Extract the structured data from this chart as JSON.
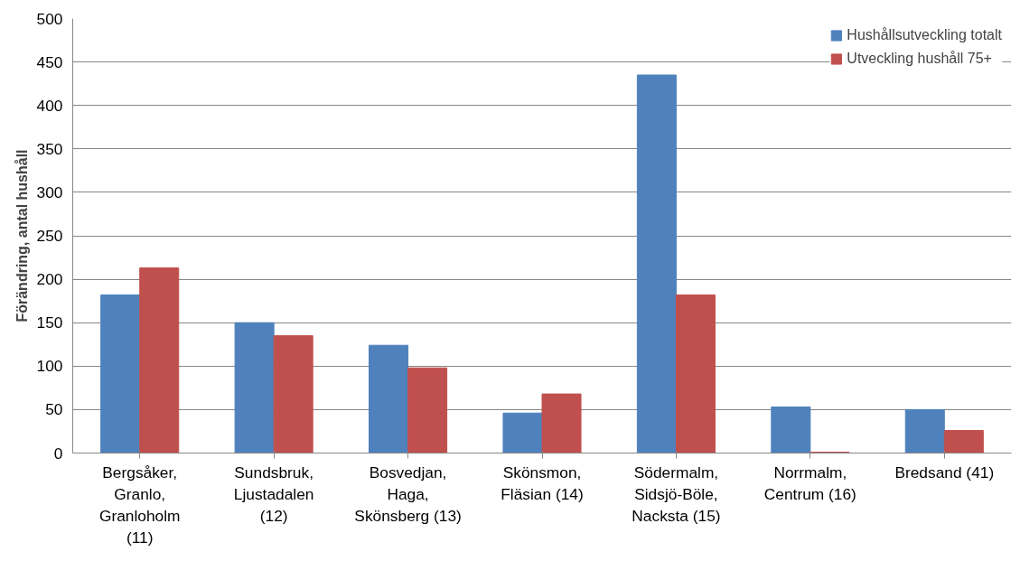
{
  "chart_data": {
    "type": "bar",
    "ylabel": "Förändring, antal hushåll",
    "categories": [
      "Bergsåker,\nGranlo,\nGranloholm\n(11)",
      "Sundsbruk,\nLjustadalen\n(12)",
      "Bosvedjan,\nHaga,\nSkönsberg (13)",
      "Skönsmon,\nFläsian (14)",
      "Södermalm,\nSidsjö-Böle,\nNacksta (15)",
      "Norrmalm,\nCentrum (16)",
      "Bredsand (41)"
    ],
    "series": [
      {
        "name": "Hushållsutveckling totalt",
        "color": "#4f81bd",
        "values": [
          182,
          150,
          124,
          46,
          435,
          53,
          50
        ]
      },
      {
        "name": "Utveckling hushåll 75+",
        "color": "#c0504d",
        "values": [
          213,
          135,
          98,
          68,
          182,
          1,
          26
        ]
      }
    ],
    "ylim": [
      0,
      500
    ],
    "yticks": [
      0,
      50,
      100,
      150,
      200,
      250,
      300,
      350,
      400,
      450,
      500
    ],
    "grid": "y",
    "legend": "top right"
  }
}
